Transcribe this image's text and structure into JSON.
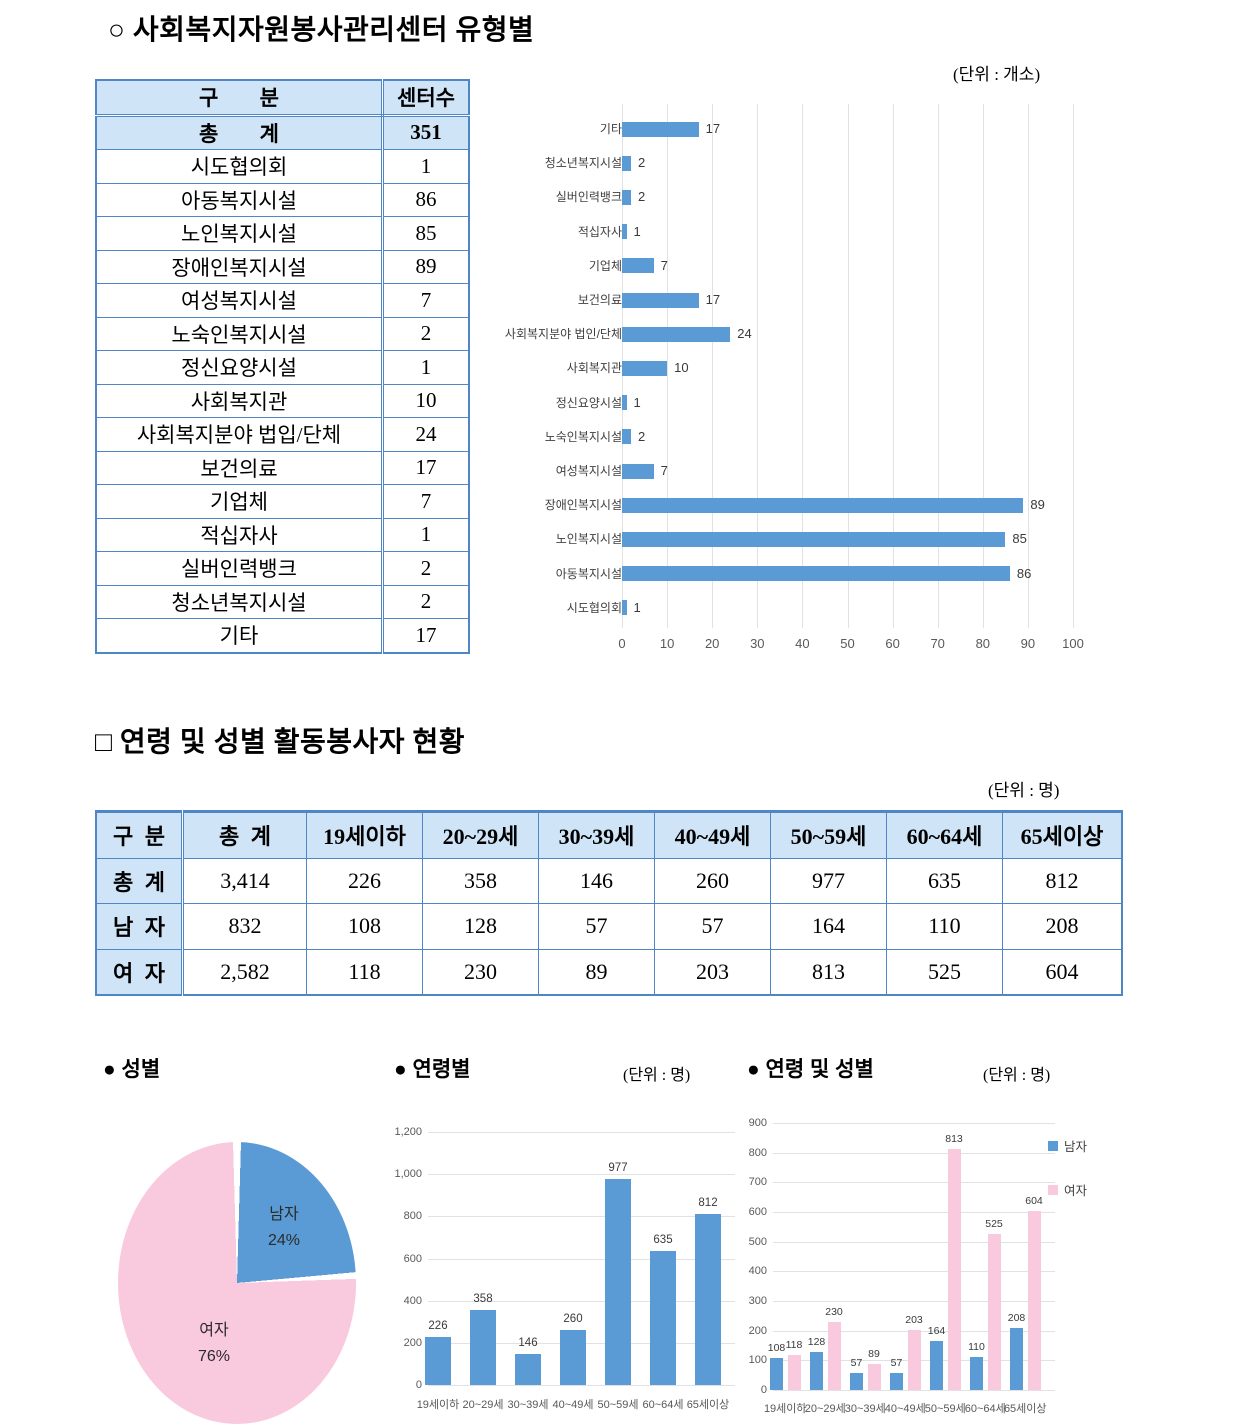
{
  "colors": {
    "bar_blue": "#5B9BD5",
    "bar_pink": "#F9C9DD",
    "table_border": "#4E86C6",
    "header_bg": "#CFE5F7",
    "grid": "#E2E2E2",
    "axis_text": "#595959"
  },
  "section1": {
    "title": "○ 사회복지자원봉사관리센터 유형별",
    "unit": "(단위 : 개소)",
    "table": {
      "col_headers": [
        "구 분",
        "센터수"
      ],
      "rows": [
        {
          "label": "총 계",
          "value": "351",
          "total": true
        },
        {
          "label": "시도협의회",
          "value": "1"
        },
        {
          "label": "아동복지시설",
          "value": "86"
        },
        {
          "label": "노인복지시설",
          "value": "85"
        },
        {
          "label": "장애인복지시설",
          "value": "89"
        },
        {
          "label": "여성복지시설",
          "value": "7"
        },
        {
          "label": "노숙인복지시설",
          "value": "2"
        },
        {
          "label": "정신요양시설",
          "value": "1"
        },
        {
          "label": "사회복지관",
          "value": "10"
        },
        {
          "label": "사회복지분야 법입/단체",
          "value": "24"
        },
        {
          "label": "보건의료",
          "value": "17"
        },
        {
          "label": "기업체",
          "value": "7"
        },
        {
          "label": "적십자사",
          "value": "1"
        },
        {
          "label": "실버인력뱅크",
          "value": "2"
        },
        {
          "label": "청소년복지시설",
          "value": "2"
        },
        {
          "label": "기타",
          "value": "17"
        }
      ]
    }
  },
  "section2": {
    "title": "□ 연령 및 성별 활동봉사자 현황",
    "unit": "(단위 : 명)",
    "table": {
      "col_headers": [
        "구 분",
        "총 계",
        "19세이하",
        "20~29세",
        "30~39세",
        "40~49세",
        "50~59세",
        "60~64세",
        "65세이상"
      ],
      "rows": [
        {
          "label": "총 계",
          "cells": [
            "3,414",
            "226",
            "358",
            "146",
            "260",
            "977",
            "635",
            "812"
          ]
        },
        {
          "label": "남 자",
          "cells": [
            "832",
            "108",
            "128",
            "57",
            "57",
            "164",
            "110",
            "208"
          ]
        },
        {
          "label": "여 자",
          "cells": [
            "2,582",
            "118",
            "230",
            "89",
            "203",
            "813",
            "525",
            "604"
          ]
        }
      ]
    }
  },
  "subsection": {
    "gender_title": "● 성별",
    "age_title": "● 연령별",
    "age_unit": "(단위 : 명)",
    "age_gender_title": "● 연령 및 성별",
    "age_gender_unit": "(단위 : 명)"
  },
  "chart_data": [
    {
      "id": "center-types",
      "type": "bar",
      "orientation": "horizontal",
      "unit": "(단위 : 개소)",
      "categories": [
        "기타",
        "청소년복지시설",
        "실버인력뱅크",
        "적십자사",
        "기업체",
        "보건의료",
        "사회복지분야 법인/단체",
        "사회복지관",
        "정신요양시설",
        "노숙인복지시설",
        "여성복지시설",
        "장애인복지시설",
        "노인복지시설",
        "아동복지시설",
        "시도협의회"
      ],
      "values": [
        17,
        2,
        2,
        1,
        7,
        17,
        24,
        10,
        1,
        2,
        7,
        89,
        85,
        86,
        1
      ],
      "xlim": [
        0,
        100
      ],
      "xticks": [
        "0",
        "10",
        "20",
        "30",
        "40",
        "50",
        "60",
        "70",
        "80",
        "90",
        "100"
      ],
      "grid": true,
      "data_labels": true,
      "legend": "none"
    },
    {
      "id": "gender-pie",
      "type": "pie",
      "title": "성별",
      "slices": [
        {
          "label": "남자",
          "pct": 24,
          "pct_label": "24%",
          "color": "#5B9BD5"
        },
        {
          "label": "여자",
          "pct": 76,
          "pct_label": "76%",
          "color": "#F9C9DD"
        }
      ]
    },
    {
      "id": "volunteers-by-age",
      "type": "bar",
      "title": "연령별",
      "unit": "(단위 : 명)",
      "categories": [
        "19세이하",
        "20~29세",
        "30~39세",
        "40~49세",
        "50~59세",
        "60~64세",
        "65세이상"
      ],
      "values": [
        226,
        358,
        146,
        260,
        977,
        635,
        812
      ],
      "ylim": [
        0,
        1200
      ],
      "yticks": [
        "0",
        "200",
        "400",
        "600",
        "800",
        "1,000",
        "1,200"
      ],
      "grid": true,
      "data_labels": true,
      "legend": "none"
    },
    {
      "id": "volunteers-by-age-gender",
      "type": "bar",
      "title": "연령 및 성별",
      "unit": "(단위 : 명)",
      "categories": [
        "19세이하",
        "20~29세",
        "30~39세",
        "40~49세",
        "50~59세",
        "60~64세",
        "65세이상"
      ],
      "series": [
        {
          "name": "남자",
          "color": "#5B9BD5",
          "values": [
            108,
            128,
            57,
            57,
            164,
            110,
            208
          ]
        },
        {
          "name": "여자",
          "color": "#F9C9DD",
          "values": [
            118,
            230,
            89,
            203,
            813,
            525,
            604
          ]
        }
      ],
      "ylim": [
        0,
        900
      ],
      "yticks": [
        "0",
        "100",
        "200",
        "300",
        "400",
        "500",
        "600",
        "700",
        "800",
        "900"
      ],
      "grid": true,
      "data_labels": true,
      "legend": "right"
    }
  ]
}
